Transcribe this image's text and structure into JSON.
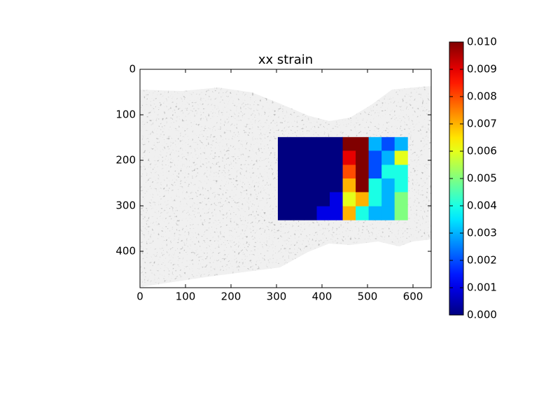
{
  "chart_data": {
    "type": "heatmap",
    "title": "xx strain",
    "xlim": [
      0,
      640
    ],
    "ylim": [
      480,
      0
    ],
    "xticks": [
      0,
      100,
      200,
      300,
      400,
      500,
      600
    ],
    "yticks": [
      0,
      100,
      200,
      300,
      400
    ],
    "x_edges": [
      303,
      331.5,
      360,
      388.5,
      417,
      445.5,
      474,
      502.5,
      531,
      559.5,
      588
    ],
    "y_edges": [
      149,
      179,
      210,
      240,
      270,
      301,
      331
    ],
    "values": [
      [
        0,
        0,
        0,
        0,
        0,
        0.01,
        0.01,
        0.003,
        0.002,
        0.003
      ],
      [
        0,
        0,
        0,
        0,
        0,
        0.009,
        0.01,
        0.002,
        0.003,
        0.006
      ],
      [
        0,
        0,
        0,
        0,
        0,
        0.008,
        0.01,
        0.002,
        0.004,
        0.004
      ],
      [
        0,
        0,
        0,
        0,
        0,
        0.007,
        0.01,
        0.004,
        0.003,
        0.004
      ],
      [
        0,
        0,
        0,
        0,
        0.001,
        0.006,
        0.007,
        0.004,
        0.003,
        0.005
      ],
      [
        0,
        0,
        0,
        0.001,
        0.001,
        0.007,
        0.004,
        0.003,
        0.003,
        0.005
      ]
    ],
    "colormap": "jet",
    "clim": [
      0,
      0.01
    ],
    "cticks": [
      {
        "value": 0,
        "label": "0.000"
      },
      {
        "value": 0.001,
        "label": "0.001"
      },
      {
        "value": 0.002,
        "label": "0.002"
      },
      {
        "value": 0.003,
        "label": "0.003"
      },
      {
        "value": 0.004,
        "label": "0.004"
      },
      {
        "value": 0.005,
        "label": "0.005"
      },
      {
        "value": 0.006,
        "label": "0.006"
      },
      {
        "value": 0.007,
        "label": "0.007"
      },
      {
        "value": 0.008,
        "label": "0.008"
      },
      {
        "value": 0.009,
        "label": "0.009"
      },
      {
        "value": 0.01,
        "label": "0.010"
      }
    ]
  }
}
